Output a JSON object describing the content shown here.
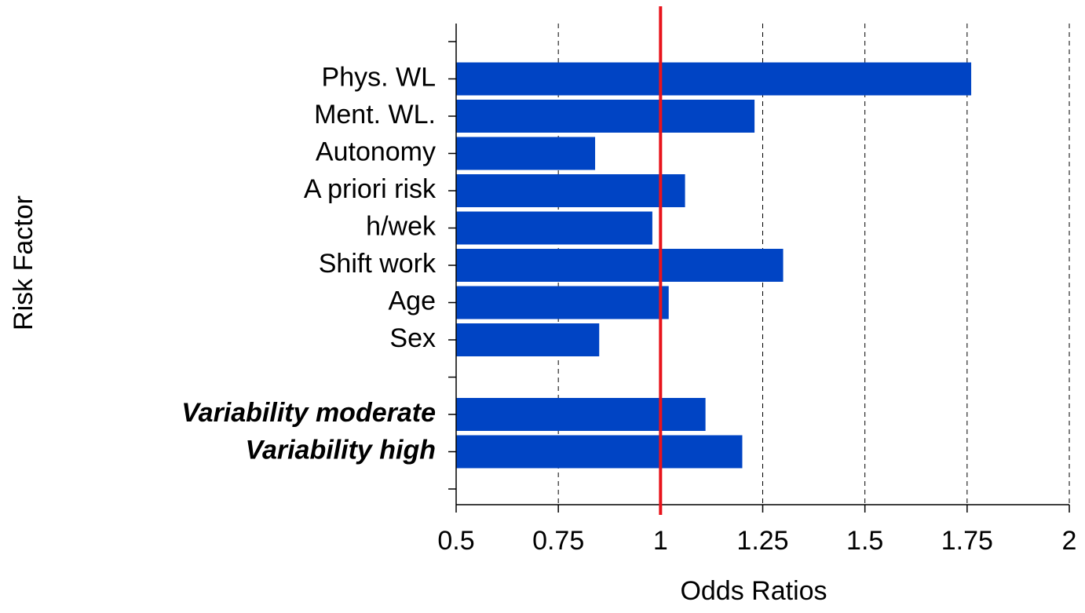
{
  "chart_data": {
    "type": "hbar",
    "xlabel": "Odds Ratios",
    "ylabel": "Risk Factor",
    "categories": [
      null,
      "Phys. WL",
      "Ment. WL.",
      "Autonomy",
      "A priori risk",
      "h/wek",
      "Shift work",
      "Age",
      "Sex",
      null,
      "Variability moderate",
      "Variability high",
      null
    ],
    "values": [
      null,
      1.76,
      1.23,
      0.84,
      1.06,
      0.98,
      1.3,
      1.02,
      0.85,
      null,
      1.11,
      1.2,
      null
    ],
    "emphasized_categories": [
      10,
      11
    ],
    "color": "#0044c4",
    "reference_line": {
      "value": 1,
      "color": "#e8141c"
    },
    "xlim": [
      0.5,
      2
    ],
    "xticks": [
      0.5,
      0.75,
      1,
      1.25,
      1.5,
      1.75,
      2
    ],
    "grid": true
  }
}
